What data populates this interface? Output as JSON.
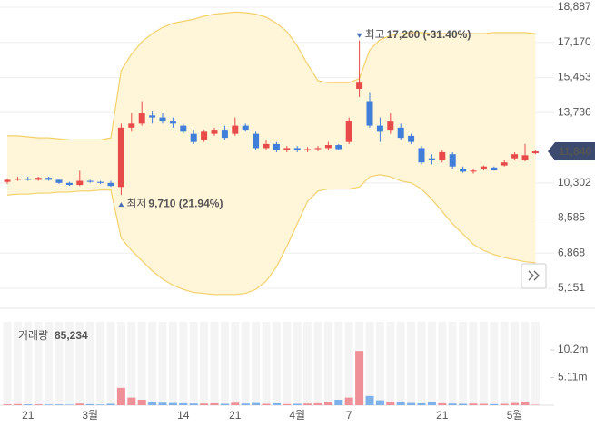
{
  "chart_data": {
    "type": "candlestick",
    "categories": [
      null,
      null,
      "21",
      null,
      null,
      null,
      null,
      null,
      "3월",
      null,
      null,
      null,
      null,
      null,
      null,
      null,
      null,
      "14",
      null,
      null,
      null,
      null,
      "21",
      null,
      null,
      null,
      null,
      null,
      "4월",
      null,
      null,
      null,
      null,
      "7",
      null,
      null,
      null,
      null,
      null,
      null,
      null,
      null,
      "21",
      null,
      null,
      null,
      null,
      null,
      null,
      "5월",
      null,
      null
    ],
    "ohlc": {
      "open": [
        10350,
        10450,
        10500,
        10450,
        10550,
        10450,
        10300,
        10200,
        10400,
        10350,
        10300,
        10100,
        13000,
        13200,
        13600,
        13500,
        13300,
        13100,
        12700,
        12400,
        12700,
        12900,
        12700,
        13100,
        12700,
        12000,
        12200,
        11900,
        12000,
        11900,
        11950,
        12000,
        12150,
        12300,
        14900,
        14300,
        13100,
        12900,
        13000,
        12600,
        12000,
        11500,
        11400,
        11700,
        11000,
        10850,
        11000,
        11050,
        11150,
        11500,
        11400,
        11750
      ],
      "high": [
        10500,
        10600,
        10600,
        10600,
        10600,
        10500,
        10350,
        10900,
        10450,
        10400,
        10400,
        13200,
        13700,
        14300,
        13800,
        13700,
        13500,
        13200,
        12900,
        12900,
        13000,
        13100,
        13500,
        13200,
        12800,
        12400,
        12300,
        12100,
        12100,
        12050,
        12100,
        12300,
        12200,
        13500,
        17260,
        14700,
        13500,
        13700,
        13200,
        12700,
        12100,
        11700,
        11900,
        11800,
        11100,
        11000,
        11150,
        11100,
        11400,
        11800,
        12200,
        11900
      ],
      "low": [
        10250,
        10400,
        10400,
        10400,
        10400,
        10250,
        10150,
        10150,
        10300,
        10250,
        10100,
        9710,
        12800,
        13100,
        13200,
        13200,
        13000,
        12700,
        12200,
        12300,
        12600,
        12400,
        12600,
        12800,
        11900,
        11900,
        11800,
        11800,
        11800,
        11800,
        11850,
        11900,
        11900,
        12200,
        14500,
        13000,
        12300,
        12700,
        12400,
        12200,
        11200,
        11200,
        11300,
        11000,
        10800,
        10750,
        10950,
        10900,
        11100,
        11400,
        11350,
        11700
      ],
      "close": [
        10450,
        10500,
        10450,
        10550,
        10450,
        10300,
        10200,
        10400,
        10350,
        10300,
        10150,
        13000,
        13200,
        13700,
        13500,
        13300,
        13200,
        12800,
        12300,
        12800,
        12900,
        12500,
        13100,
        12900,
        12000,
        12200,
        11900,
        12000,
        11900,
        11950,
        12000,
        12150,
        11950,
        13300,
        15200,
        13100,
        12800,
        13300,
        12500,
        12300,
        11300,
        11400,
        11800,
        11100,
        10850,
        10900,
        11100,
        10950,
        11300,
        11700,
        11650,
        11840
      ]
    },
    "up_color": "#e84a4a",
    "down_color": "#3f7fd9",
    "ylim": [
      4176,
      19241
    ],
    "yticks": [
      {
        "value": 18887,
        "label": "18,887"
      },
      {
        "value": 17170,
        "label": "17,170"
      },
      {
        "value": 15453,
        "label": "15,453"
      },
      {
        "value": 13736,
        "label": "13,736"
      },
      {
        "value": 10302,
        "label": "10,302"
      },
      {
        "value": 8585,
        "label": "8,585"
      },
      {
        "value": 6868,
        "label": "6,868"
      },
      {
        "value": 5151,
        "label": "5,151"
      }
    ],
    "grid": true,
    "last_price": {
      "value": 11840,
      "label": "11,840",
      "color": "#3b4a6e"
    },
    "high_note": {
      "label": "최고",
      "text": "17,260 (-31.40%)",
      "color": "#4a6fb5"
    },
    "low_note": {
      "label": "최저",
      "text": "9,710 (21.94%)",
      "color": "#4a6fb5"
    },
    "overlays": [
      {
        "color": "#f3d06a",
        "values": [
          12600,
          12600,
          12550,
          12500,
          12500,
          12450,
          12400,
          12400,
          12400,
          12400,
          12500,
          15800,
          16600,
          17200,
          17600,
          17900,
          18100,
          18200,
          18300,
          18450,
          18550,
          18600,
          18650,
          18620,
          18550,
          18400,
          18100,
          17700,
          17000,
          16100,
          15300,
          15200,
          15200,
          15200,
          15400,
          16800,
          17300,
          17500,
          17600,
          17650,
          17650,
          17600,
          17600,
          17600,
          17600,
          17600,
          17600,
          17650,
          17650,
          17650,
          17650,
          17600
        ]
      },
      {
        "color": "#f3d06a",
        "values": [
          9700,
          9750,
          9750,
          9800,
          9800,
          9850,
          9850,
          9900,
          9900,
          9950,
          9950,
          7600,
          7000,
          6500,
          6000,
          5600,
          5300,
          5100,
          4950,
          4900,
          4850,
          4850,
          4850,
          4900,
          5100,
          5500,
          6200,
          7200,
          8300,
          9400,
          9900,
          10000,
          10000,
          10000,
          10100,
          10600,
          10700,
          10600,
          10400,
          10300,
          10000,
          9500,
          8900,
          8300,
          7800,
          7300,
          7000,
          6800,
          6650,
          6550,
          6450,
          6400
        ]
      }
    ],
    "volume": {
      "title": "거래량",
      "last_label": "85,234",
      "up_color": "#ef8f98",
      "down_color": "#7eb0ea",
      "values": [
        150000,
        200000,
        150000,
        150000,
        120000,
        130000,
        100000,
        300000,
        180000,
        120000,
        250000,
        3200000,
        1400000,
        1000000,
        500000,
        450000,
        400000,
        350000,
        300000,
        300000,
        350000,
        250000,
        450000,
        300000,
        400000,
        250000,
        350000,
        200000,
        250000,
        300000,
        350000,
        600000,
        1000000,
        1400000,
        10000000,
        1700000,
        900000,
        600000,
        500000,
        400000,
        350000,
        500000,
        350000,
        300000,
        250000,
        300000,
        250000,
        200000,
        250000,
        400000,
        500000,
        85234
      ],
      "ylim": [
        0,
        15380000
      ],
      "yticks": [
        {
          "value": 10200000,
          "label": "10.2m"
        },
        {
          "value": 5110000,
          "label": "5.11m"
        }
      ]
    }
  }
}
